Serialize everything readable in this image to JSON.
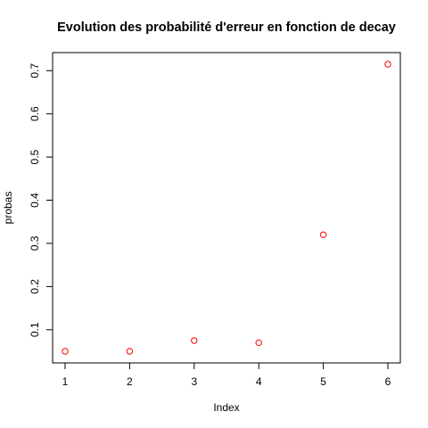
{
  "chart_data": {
    "type": "scatter",
    "title": "Evolution des probabilité d'erreur en fonction de decay",
    "xlabel": "Index",
    "ylabel": "probas",
    "x": [
      1,
      2,
      3,
      4,
      5,
      6
    ],
    "y": [
      0.05,
      0.05,
      0.075,
      0.07,
      0.32,
      0.715
    ],
    "xlim": [
      1,
      6
    ],
    "ylim": [
      0.05,
      0.715
    ],
    "x_ticks": [
      "1",
      "2",
      "3",
      "4",
      "5",
      "6"
    ],
    "y_ticks": [
      "0.1",
      "0.2",
      "0.3",
      "0.4",
      "0.5",
      "0.6",
      "0.7"
    ],
    "marker": "open-circle",
    "marker_color": "#ff0000",
    "grid": false,
    "legend": "none"
  }
}
